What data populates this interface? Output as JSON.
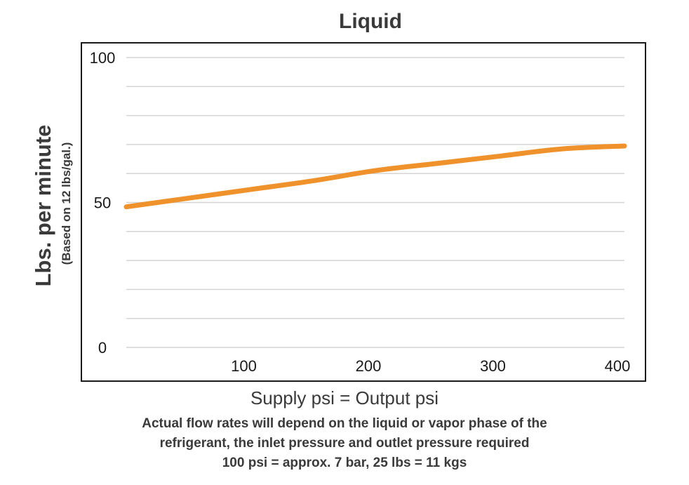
{
  "chart_data": {
    "type": "line",
    "title": "Liquid",
    "xlabel": "Supply psi = Output psi",
    "ylabel": "Lbs. per minute",
    "ylabel_sub": "(Based on 12 lbs/gal.)",
    "xlim": [
      0,
      400
    ],
    "ylim": [
      0,
      100
    ],
    "x_ticks": [
      100,
      200,
      300,
      400
    ],
    "y_ticks": [
      0,
      50,
      100
    ],
    "grid": true,
    "series": [
      {
        "name": "Liquid",
        "color": "#f0922b",
        "x": [
          0,
          50,
          100,
          150,
          200,
          250,
          300,
          350,
          400
        ],
        "y": [
          48.5,
          51.5,
          54.5,
          57.5,
          61,
          63.5,
          66,
          68.5,
          69.5
        ]
      }
    ]
  },
  "notes": [
    "Actual flow rates will depend on the liquid or vapor phase of the",
    "refrigerant, the inlet pressure and outlet pressure required",
    "100 psi = approx. 7 bar,  25 lbs = 11 kgs"
  ]
}
